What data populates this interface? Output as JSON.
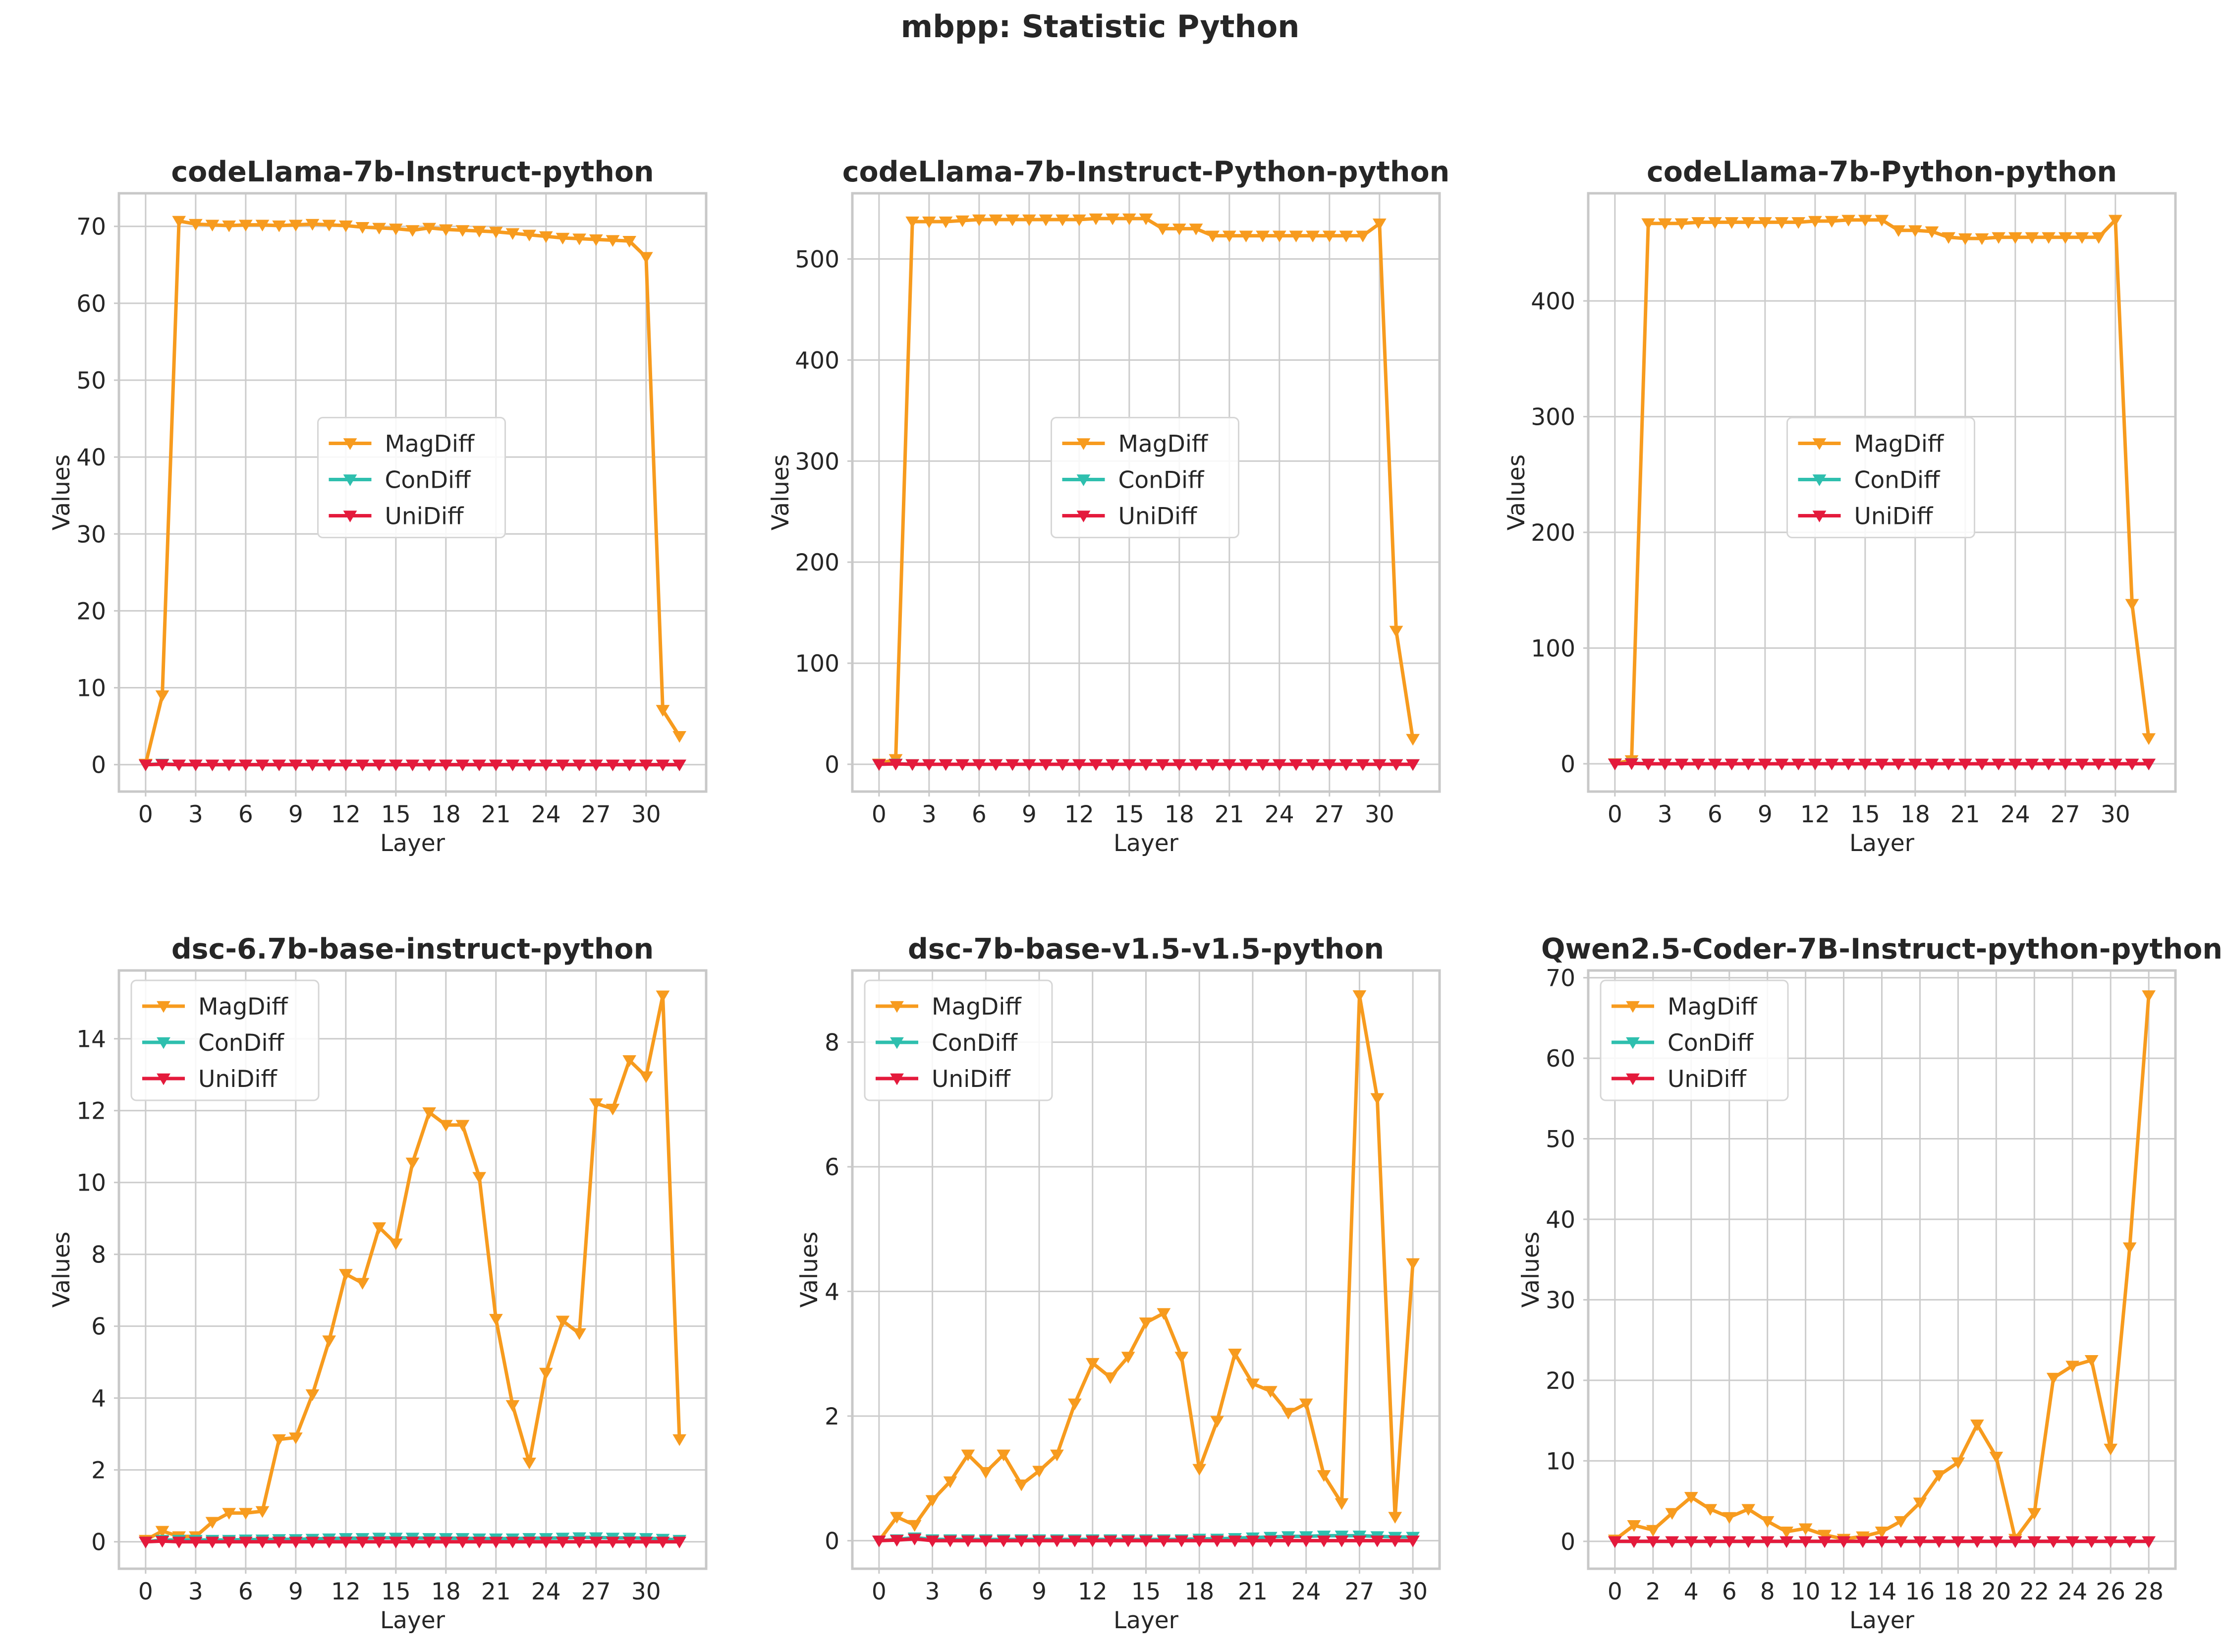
{
  "suptitle": "mbpp: Statistic Python",
  "colors": {
    "MagDiff": "#f79b1e",
    "ConDiff": "#2ebfae",
    "UniDiff": "#e41a3c"
  },
  "chart_data": [
    {
      "type": "line",
      "title": "codeLlama-7b-Instruct-python",
      "xlabel": "Layer",
      "ylabel": "Values",
      "xlim": [
        -1.6,
        33.6
      ],
      "ylim": [
        -3.5,
        74.3
      ],
      "xticks": [
        0,
        3,
        6,
        9,
        12,
        15,
        18,
        21,
        24,
        27,
        30
      ],
      "yticks": [
        0,
        10,
        20,
        30,
        40,
        50,
        60,
        70
      ],
      "grid": true,
      "legend": "center",
      "x": [
        0,
        1,
        2,
        3,
        4,
        5,
        6,
        7,
        8,
        9,
        10,
        11,
        12,
        13,
        14,
        15,
        16,
        17,
        18,
        19,
        20,
        21,
        22,
        23,
        24,
        25,
        26,
        27,
        28,
        29,
        30,
        31,
        32
      ],
      "series": [
        {
          "name": "MagDiff",
          "values": [
            0.1,
            9.0,
            70.7,
            70.3,
            70.2,
            70.1,
            70.2,
            70.2,
            70.1,
            70.2,
            70.3,
            70.2,
            70.1,
            69.9,
            69.8,
            69.7,
            69.5,
            69.8,
            69.6,
            69.5,
            69.4,
            69.3,
            69.1,
            68.9,
            68.7,
            68.5,
            68.4,
            68.3,
            68.2,
            68.1,
            66.0,
            7.1,
            3.7
          ]
        },
        {
          "name": "ConDiff",
          "values": [
            0,
            0.1,
            0,
            0,
            0,
            0,
            0,
            0,
            0,
            0,
            0,
            0,
            0,
            0,
            0,
            0,
            0,
            0,
            0,
            0,
            0,
            0,
            0,
            0,
            0,
            0,
            0,
            0,
            0,
            0,
            0,
            0,
            0
          ]
        },
        {
          "name": "UniDiff",
          "values": [
            0,
            0.05,
            0,
            0,
            0,
            0,
            0,
            0,
            0,
            0,
            0,
            0,
            0,
            0,
            0,
            0,
            0,
            0,
            0,
            0,
            0,
            0,
            0,
            0,
            0,
            0,
            0,
            0,
            0,
            0,
            0,
            0,
            0
          ]
        }
      ]
    },
    {
      "type": "line",
      "title": "codeLlama-7b-Instruct-Python-python",
      "xlabel": "Layer",
      "ylabel": "Values",
      "xlim": [
        -1.6,
        33.6
      ],
      "ylim": [
        -27,
        565
      ],
      "xticks": [
        0,
        3,
        6,
        9,
        12,
        15,
        18,
        21,
        24,
        27,
        30
      ],
      "yticks": [
        0,
        100,
        200,
        300,
        400,
        500
      ],
      "grid": true,
      "legend": "center",
      "x": [
        0,
        1,
        2,
        3,
        4,
        5,
        6,
        7,
        8,
        9,
        10,
        11,
        12,
        13,
        14,
        15,
        16,
        17,
        18,
        19,
        20,
        21,
        22,
        23,
        24,
        25,
        26,
        27,
        28,
        29,
        30,
        31,
        32
      ],
      "series": [
        {
          "name": "MagDiff",
          "values": [
            0.5,
            5,
            537,
            537,
            537,
            538,
            539,
            539,
            539,
            539,
            539,
            539,
            539,
            540,
            540,
            540,
            540,
            530,
            530,
            530,
            523,
            523,
            523,
            523,
            523,
            523,
            523,
            523,
            523,
            523,
            535,
            132,
            25
          ]
        },
        {
          "name": "ConDiff",
          "values": [
            0,
            0.5,
            0,
            0,
            0,
            0,
            0,
            0,
            0,
            0,
            0,
            0,
            0,
            0,
            0,
            0,
            0,
            0,
            0,
            0,
            0,
            0,
            0,
            0,
            0,
            0,
            0,
            0,
            0,
            0,
            0,
            0,
            0
          ]
        },
        {
          "name": "UniDiff",
          "values": [
            0,
            0.3,
            0,
            0,
            0,
            0,
            0,
            0,
            0,
            0,
            0,
            0,
            0,
            0,
            0,
            0,
            0,
            0,
            0,
            0,
            0,
            0,
            0,
            0,
            0,
            0,
            0,
            0,
            0,
            0,
            0,
            0,
            0
          ]
        }
      ]
    },
    {
      "type": "line",
      "title": "codeLlama-7b-Python-python",
      "xlabel": "Layer",
      "ylabel": "Values",
      "xlim": [
        -1.6,
        33.6
      ],
      "ylim": [
        -24,
        493
      ],
      "xticks": [
        0,
        3,
        6,
        9,
        12,
        15,
        18,
        21,
        24,
        27,
        30
      ],
      "yticks": [
        0,
        100,
        200,
        300,
        400
      ],
      "grid": true,
      "legend": "center",
      "x": [
        0,
        1,
        2,
        3,
        4,
        5,
        6,
        7,
        8,
        9,
        10,
        11,
        12,
        13,
        14,
        15,
        16,
        17,
        18,
        19,
        20,
        21,
        22,
        23,
        24,
        25,
        26,
        27,
        28,
        29,
        30,
        31,
        32
      ],
      "series": [
        {
          "name": "MagDiff",
          "values": [
            0.3,
            3,
            467,
            467,
            467,
            468,
            468,
            468,
            468,
            468,
            468,
            468,
            469,
            469,
            470,
            470,
            470,
            461,
            461,
            460,
            455,
            454,
            454,
            455,
            455,
            455,
            455,
            455,
            455,
            455,
            470,
            138,
            22
          ]
        },
        {
          "name": "ConDiff",
          "values": [
            0,
            0.5,
            0,
            0,
            0,
            0,
            0,
            0,
            0,
            0,
            0,
            0,
            0,
            0,
            0,
            0,
            0,
            0,
            0,
            0,
            0,
            0,
            0,
            0,
            0,
            0,
            0,
            0,
            0,
            0,
            0,
            0,
            0
          ]
        },
        {
          "name": "UniDiff",
          "values": [
            0,
            0.3,
            0,
            0,
            0,
            0,
            0,
            0,
            0,
            0,
            0,
            0,
            0,
            0,
            0,
            0,
            0,
            0,
            0,
            0,
            0,
            0,
            0,
            0,
            0,
            0,
            0,
            0,
            0,
            0,
            0,
            0,
            0
          ]
        }
      ]
    },
    {
      "type": "line",
      "title": "dsc-6.7b-base-instruct-python",
      "xlabel": "Layer",
      "ylabel": "Values",
      "xlim": [
        -1.6,
        33.6
      ],
      "ylim": [
        -0.75,
        15.9
      ],
      "xticks": [
        0,
        3,
        6,
        9,
        12,
        15,
        18,
        21,
        24,
        27,
        30
      ],
      "yticks": [
        0,
        2,
        4,
        6,
        8,
        10,
        12,
        14
      ],
      "grid": true,
      "legend": "upper left",
      "x": [
        0,
        1,
        2,
        3,
        4,
        5,
        6,
        7,
        8,
        9,
        10,
        11,
        12,
        13,
        14,
        15,
        16,
        17,
        18,
        19,
        20,
        21,
        22,
        23,
        24,
        25,
        26,
        27,
        28,
        29,
        30,
        31,
        32
      ],
      "series": [
        {
          "name": "MagDiff",
          "values": [
            0.05,
            0.3,
            0.15,
            0.15,
            0.55,
            0.8,
            0.8,
            0.85,
            2.85,
            2.9,
            4.1,
            5.6,
            7.45,
            7.2,
            8.75,
            8.3,
            10.55,
            11.95,
            11.6,
            11.6,
            10.15,
            6.2,
            3.8,
            2.2,
            4.7,
            6.15,
            5.8,
            12.2,
            12.05,
            13.4,
            12.95,
            15.2,
            2.85
          ]
        },
        {
          "name": "ConDiff",
          "values": [
            0,
            0.05,
            0.05,
            0.05,
            0.05,
            0.05,
            0.06,
            0.06,
            0.07,
            0.07,
            0.08,
            0.09,
            0.1,
            0.1,
            0.11,
            0.11,
            0.11,
            0.1,
            0.1,
            0.1,
            0.09,
            0.09,
            0.09,
            0.1,
            0.1,
            0.11,
            0.12,
            0.12,
            0.11,
            0.11,
            0.1,
            0.08,
            0.05
          ]
        },
        {
          "name": "UniDiff",
          "values": [
            0,
            0.02,
            0,
            0,
            0,
            0,
            0,
            0,
            0,
            0,
            0,
            0,
            0,
            0,
            0,
            0,
            0,
            0,
            0,
            0,
            0,
            0,
            0,
            0,
            0,
            0,
            0,
            0,
            0,
            0,
            0,
            0,
            0
          ]
        }
      ]
    },
    {
      "type": "line",
      "title": "dsc-7b-base-v1.5-v1.5-python",
      "xlabel": "Layer",
      "ylabel": "Values",
      "xlim": [
        -1.5,
        31.5
      ],
      "ylim": [
        -0.45,
        9.15
      ],
      "xticks": [
        0,
        3,
        6,
        9,
        12,
        15,
        18,
        21,
        24,
        27,
        30
      ],
      "yticks": [
        0,
        2,
        4,
        6,
        8
      ],
      "grid": true,
      "legend": "upper left",
      "x": [
        0,
        1,
        2,
        3,
        4,
        5,
        6,
        7,
        8,
        9,
        10,
        11,
        12,
        13,
        14,
        15,
        16,
        17,
        18,
        19,
        20,
        21,
        22,
        23,
        24,
        25,
        26,
        27,
        28,
        29,
        30
      ],
      "series": [
        {
          "name": "MagDiff",
          "values": [
            0.0,
            0.38,
            0.25,
            0.65,
            0.95,
            1.38,
            1.1,
            1.38,
            0.9,
            1.12,
            1.38,
            2.2,
            2.85,
            2.62,
            2.95,
            3.5,
            3.65,
            2.95,
            1.15,
            1.92,
            3.0,
            2.52,
            2.4,
            2.05,
            2.2,
            1.05,
            0.6,
            8.75,
            7.1,
            0.38,
            4.45
          ]
        },
        {
          "name": "ConDiff",
          "values": [
            0,
            0.02,
            0.05,
            0.02,
            0.02,
            0.02,
            0.02,
            0.02,
            0.02,
            0.02,
            0.02,
            0.02,
            0.02,
            0.02,
            0.02,
            0.02,
            0.02,
            0.02,
            0.03,
            0.03,
            0.04,
            0.05,
            0.06,
            0.07,
            0.07,
            0.08,
            0.08,
            0.08,
            0.07,
            0.06,
            0.06
          ]
        },
        {
          "name": "UniDiff",
          "values": [
            0,
            0.01,
            0.03,
            0,
            0,
            0,
            0,
            0,
            0,
            0,
            0,
            0,
            0,
            0,
            0,
            0,
            0,
            0,
            0,
            0,
            0,
            0,
            0,
            0,
            0,
            0,
            0,
            0,
            0,
            0,
            0
          ]
        }
      ]
    },
    {
      "type": "line",
      "title": "Qwen2.5-Coder-7B-Instruct-python-python",
      "xlabel": "Layer",
      "ylabel": "Values",
      "xlim": [
        -1.4,
        29.4
      ],
      "ylim": [
        -3.4,
        70.9
      ],
      "xticks": [
        0,
        2,
        4,
        6,
        8,
        10,
        12,
        14,
        16,
        18,
        20,
        22,
        24,
        26,
        28
      ],
      "yticks": [
        0,
        10,
        20,
        30,
        40,
        50,
        60,
        70
      ],
      "grid": true,
      "legend": "upper left",
      "x": [
        0,
        1,
        2,
        3,
        4,
        5,
        6,
        7,
        8,
        9,
        10,
        11,
        12,
        13,
        14,
        15,
        16,
        17,
        18,
        19,
        20,
        21,
        22,
        23,
        24,
        25,
        26,
        27,
        28
      ],
      "series": [
        {
          "name": "MagDiff",
          "values": [
            0.2,
            2.0,
            1.4,
            3.5,
            5.5,
            4.0,
            3.0,
            4.0,
            2.5,
            1.2,
            1.6,
            0.8,
            0.3,
            0.6,
            1.2,
            2.5,
            4.8,
            8.2,
            9.8,
            14.5,
            10.5,
            0.3,
            3.5,
            20.3,
            21.8,
            22.5,
            11.5,
            36.5,
            67.8
          ]
        },
        {
          "name": "ConDiff",
          "values": [
            0,
            0,
            0,
            0,
            0,
            0,
            0,
            0,
            0,
            0,
            0,
            0,
            0,
            0,
            0,
            0,
            0,
            0,
            0,
            0,
            0,
            0,
            0,
            0,
            0,
            0,
            0,
            0,
            0
          ]
        },
        {
          "name": "UniDiff",
          "values": [
            0,
            0,
            0,
            0,
            0,
            0,
            0,
            0,
            0,
            0,
            0,
            0,
            0,
            0,
            0,
            0,
            0,
            0,
            0,
            0,
            0,
            0,
            0,
            0,
            0,
            0,
            0,
            0,
            0
          ]
        }
      ]
    }
  ]
}
